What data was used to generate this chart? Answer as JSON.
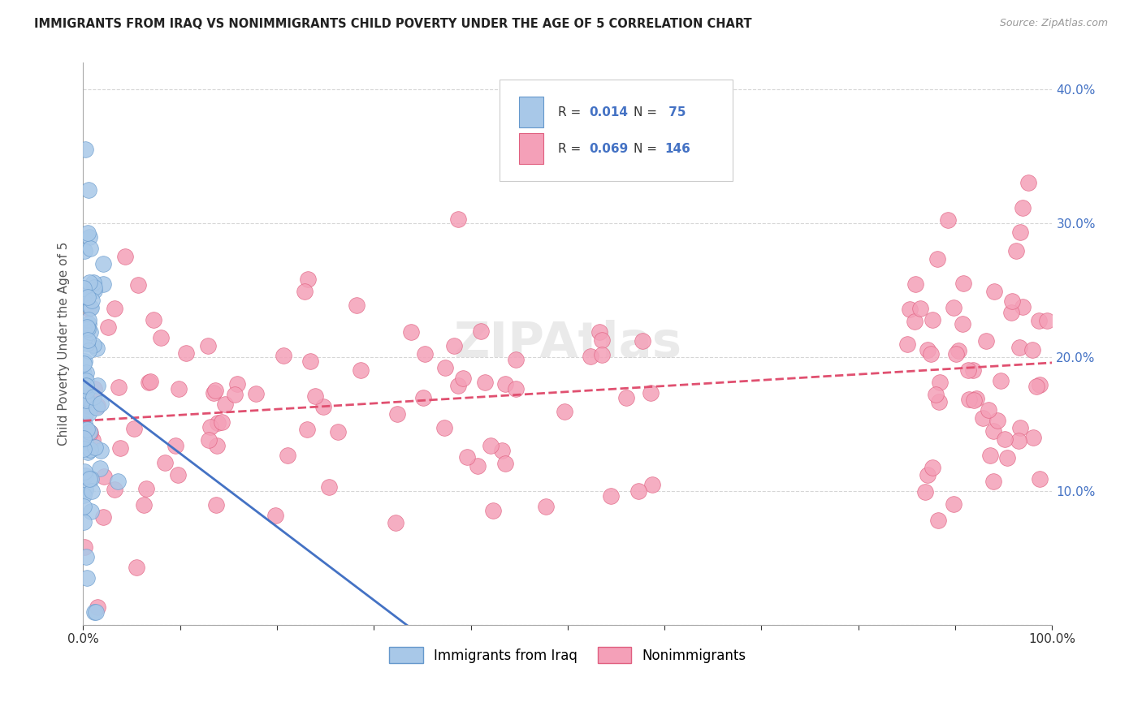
{
  "title": "IMMIGRANTS FROM IRAQ VS NONIMMIGRANTS CHILD POVERTY UNDER THE AGE OF 5 CORRELATION CHART",
  "source": "Source: ZipAtlas.com",
  "ylabel": "Child Poverty Under the Age of 5",
  "xlim": [
    0,
    1.0
  ],
  "ylim": [
    0,
    0.42
  ],
  "legend_labels": [
    "Immigrants from Iraq",
    "Nonimmigrants"
  ],
  "R_iraq": 0.014,
  "N_iraq": 75,
  "R_nonimm": 0.069,
  "N_nonimm": 146,
  "color_iraq": "#a8c8e8",
  "color_nonimm": "#f4a0b8",
  "color_iraq_edge": "#6699cc",
  "color_nonimm_edge": "#e06080",
  "trendline_iraq_color": "#4472c4",
  "trendline_nonimm_color": "#e05070",
  "background_color": "#ffffff",
  "iraq_seed": 777,
  "nonimm_seed": 888
}
